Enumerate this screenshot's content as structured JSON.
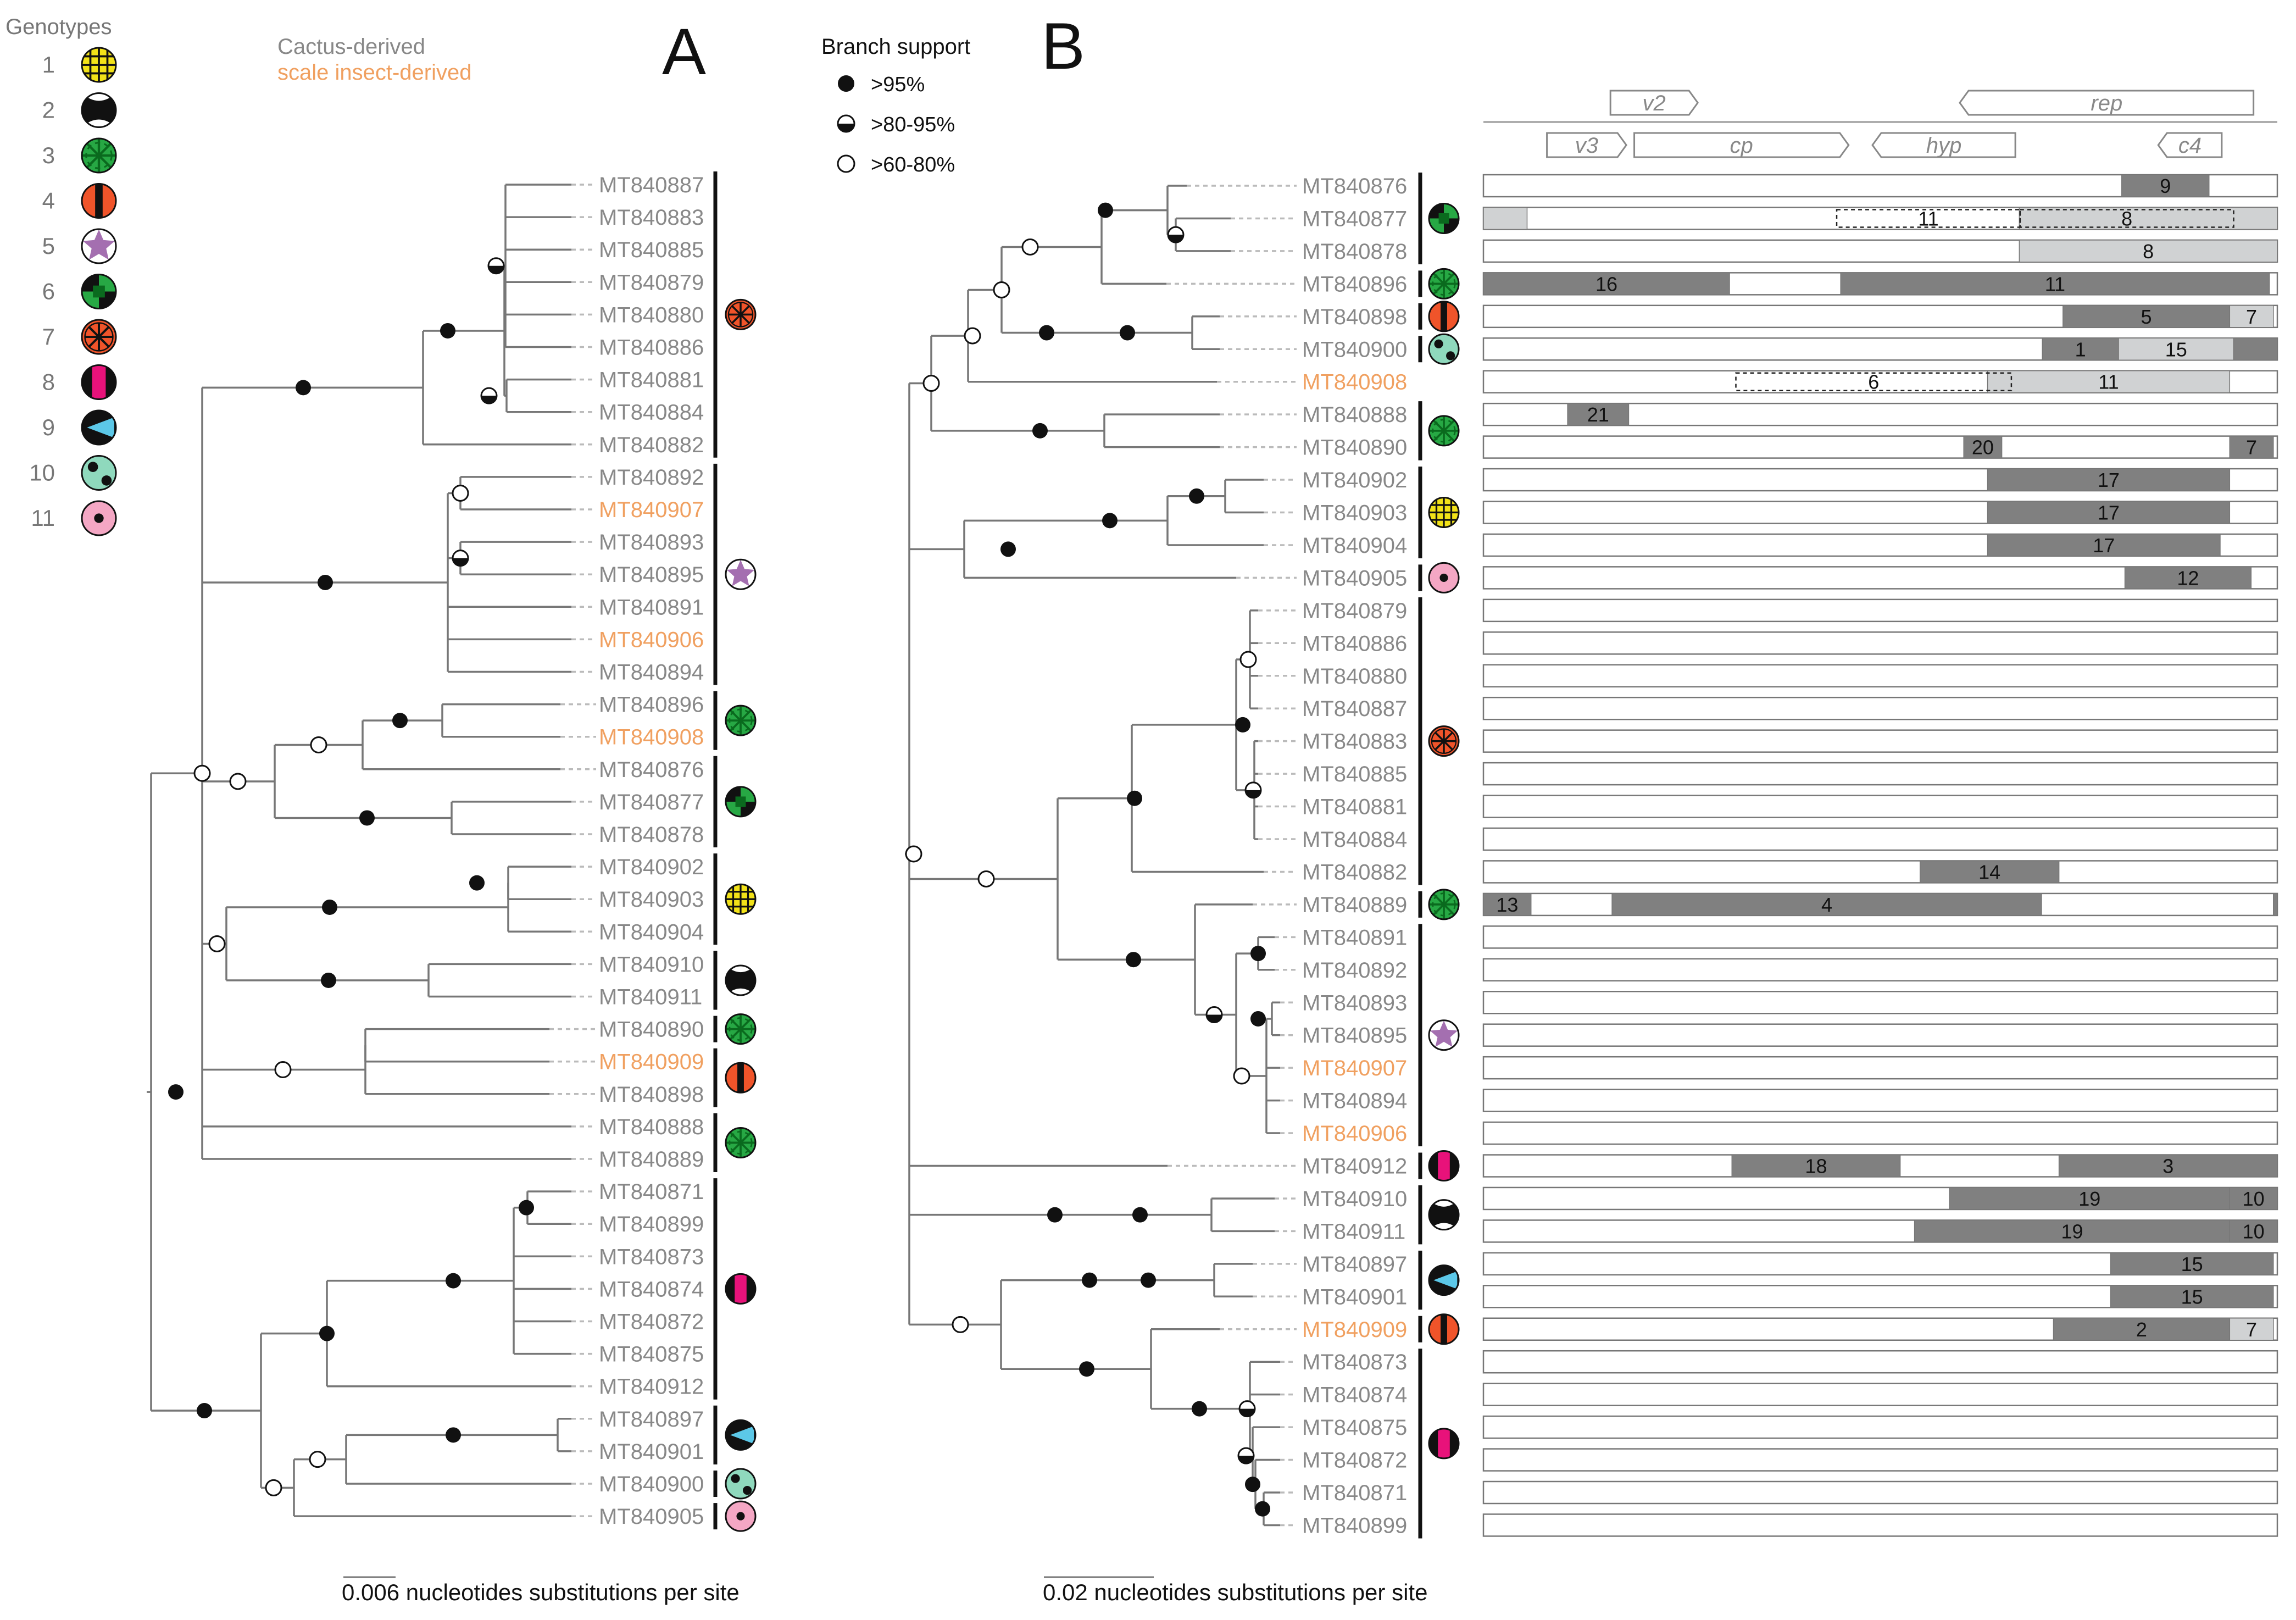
{
  "genotypes": {
    "title": "Genotypes",
    "items": [
      {
        "num": "1",
        "pattern": "grid",
        "fill": "#f2e218",
        "stroke": "#111111"
      },
      {
        "num": "2",
        "pattern": "hourglass",
        "fill": "#ffffff",
        "stroke": "#111111"
      },
      {
        "num": "3",
        "pattern": "burst",
        "fill": "#27a844",
        "stroke": "#0a6a1e"
      },
      {
        "num": "4",
        "pattern": "vbar",
        "fill": "#f0542a",
        "stroke": "#111111"
      },
      {
        "num": "5",
        "pattern": "star",
        "fill": "#a46fb0",
        "stroke": "#a46fb0"
      },
      {
        "num": "6",
        "pattern": "checker",
        "fill": "#27a844",
        "stroke": "#111111"
      },
      {
        "num": "7",
        "pattern": "asterisk",
        "fill": "#f0542a",
        "stroke": "#111111"
      },
      {
        "num": "8",
        "pattern": "pinkbar",
        "fill": "#e8127a",
        "stroke": "#111111"
      },
      {
        "num": "9",
        "pattern": "triangle",
        "fill": "#5cc8e8",
        "stroke": "#111111"
      },
      {
        "num": "10",
        "pattern": "dots",
        "fill": "#8fd9bd",
        "stroke": "#111111"
      },
      {
        "num": "11",
        "pattern": "dot",
        "fill": "#f4a7c4",
        "stroke": "#111111"
      }
    ]
  },
  "source_legend": {
    "cactus": "Cactus-derived",
    "scale": "scale insect-derived",
    "cactus_color": "#888888",
    "scale_color": "#f0a060"
  },
  "panel_a": {
    "label": "A",
    "scale_text": "0.006 nucleotides substitutions per site",
    "taxa": [
      {
        "name": "MT840887",
        "src": "cactus"
      },
      {
        "name": "MT840883",
        "src": "cactus"
      },
      {
        "name": "MT840885",
        "src": "cactus"
      },
      {
        "name": "MT840879",
        "src": "cactus"
      },
      {
        "name": "MT840880",
        "src": "cactus"
      },
      {
        "name": "MT840886",
        "src": "cactus"
      },
      {
        "name": "MT840881",
        "src": "cactus"
      },
      {
        "name": "MT840884",
        "src": "cactus"
      },
      {
        "name": "MT840882",
        "src": "cactus"
      },
      {
        "name": "MT840892",
        "src": "cactus"
      },
      {
        "name": "MT840907",
        "src": "scale"
      },
      {
        "name": "MT840893",
        "src": "cactus"
      },
      {
        "name": "MT840895",
        "src": "cactus"
      },
      {
        "name": "MT840891",
        "src": "cactus"
      },
      {
        "name": "MT840906",
        "src": "scale"
      },
      {
        "name": "MT840894",
        "src": "cactus"
      },
      {
        "name": "MT840896",
        "src": "cactus"
      },
      {
        "name": "MT840908",
        "src": "scale"
      },
      {
        "name": "MT840876",
        "src": "cactus"
      },
      {
        "name": "MT840877",
        "src": "cactus"
      },
      {
        "name": "MT840878",
        "src": "cactus"
      },
      {
        "name": "MT840902",
        "src": "cactus"
      },
      {
        "name": "MT840903",
        "src": "cactus"
      },
      {
        "name": "MT840904",
        "src": "cactus"
      },
      {
        "name": "MT840910",
        "src": "cactus"
      },
      {
        "name": "MT840911",
        "src": "cactus"
      },
      {
        "name": "MT840890",
        "src": "cactus"
      },
      {
        "name": "MT840909",
        "src": "scale"
      },
      {
        "name": "MT840898",
        "src": "cactus"
      },
      {
        "name": "MT840888",
        "src": "cactus"
      },
      {
        "name": "MT840889",
        "src": "cactus"
      },
      {
        "name": "MT840871",
        "src": "cactus"
      },
      {
        "name": "MT840899",
        "src": "cactus"
      },
      {
        "name": "MT840873",
        "src": "cactus"
      },
      {
        "name": "MT840874",
        "src": "cactus"
      },
      {
        "name": "MT840872",
        "src": "cactus"
      },
      {
        "name": "MT840875",
        "src": "cactus"
      },
      {
        "name": "MT840912",
        "src": "cactus"
      },
      {
        "name": "MT840897",
        "src": "cactus"
      },
      {
        "name": "MT840901",
        "src": "cactus"
      },
      {
        "name": "MT840900",
        "src": "cactus"
      },
      {
        "name": "MT840905",
        "src": "cactus"
      }
    ],
    "groups": [
      {
        "from": 0,
        "to": 8,
        "genotype": 7
      },
      {
        "from": 9,
        "to": 15,
        "genotype": 5
      },
      {
        "from": 16,
        "to": 17,
        "genotype": 3
      },
      {
        "from": 18,
        "to": 20,
        "genotype": 6
      },
      {
        "from": 21,
        "to": 23,
        "genotype": 1
      },
      {
        "from": 24,
        "to": 25,
        "genotype": 2
      },
      {
        "from": 26,
        "to": 26,
        "genotype": 3
      },
      {
        "from": 27,
        "to": 28,
        "genotype": 4
      },
      {
        "from": 29,
        "to": 30,
        "genotype": 3
      },
      {
        "from": 31,
        "to": 37,
        "genotype": 8
      },
      {
        "from": 38,
        "to": 39,
        "genotype": 9
      },
      {
        "from": 40,
        "to": 40,
        "genotype": 10
      },
      {
        "from": 41,
        "to": 41,
        "genotype": 11
      }
    ]
  },
  "branch_support": {
    "title": "Branch support",
    "items": [
      {
        "kind": "full",
        "label": ">95%"
      },
      {
        "kind": "half",
        "label": ">80-95%"
      },
      {
        "kind": "open",
        "label": ">60-80%"
      }
    ]
  },
  "panel_b": {
    "label": "B",
    "scale_text": "0.02 nucleotides substitutions per site",
    "genes": [
      {
        "name": "v2",
        "start": 0.16,
        "end": 0.27,
        "row": 0,
        "dir": "right"
      },
      {
        "name": "rep",
        "start": 0.6,
        "end": 0.97,
        "row": 0,
        "dir": "left"
      },
      {
        "name": "v3",
        "start": 0.08,
        "end": 0.18,
        "row": 1,
        "dir": "right"
      },
      {
        "name": "cp",
        "start": 0.19,
        "end": 0.46,
        "row": 1,
        "dir": "right"
      },
      {
        "name": "hyp",
        "start": 0.49,
        "end": 0.67,
        "row": 1,
        "dir": "left"
      },
      {
        "name": "c4",
        "start": 0.85,
        "end": 0.93,
        "row": 1,
        "dir": "left"
      }
    ],
    "taxa": [
      {
        "name": "MT840876",
        "src": "cactus",
        "segs": [
          {
            "s": 0.804,
            "e": 0.914,
            "c": "dark",
            "label": "9"
          }
        ]
      },
      {
        "name": "MT840877",
        "src": "cactus",
        "segs": [
          {
            "s": 0.0,
            "e": 0.055,
            "c": "light",
            "label": ""
          },
          {
            "s": 0.675,
            "e": 1.0,
            "c": "light",
            "label": ""
          },
          {
            "s": 0.445,
            "e": 0.676,
            "c": "dashed",
            "label": "11"
          },
          {
            "s": 0.676,
            "e": 0.945,
            "c": "dashed",
            "label": "8"
          }
        ]
      },
      {
        "name": "MT840878",
        "src": "cactus",
        "segs": [
          {
            "s": 0.675,
            "e": 1.0,
            "c": "light",
            "label": "8"
          }
        ]
      },
      {
        "name": "MT840896",
        "src": "cactus",
        "segs": [
          {
            "s": 0.0,
            "e": 0.31,
            "c": "dark",
            "label": "16"
          },
          {
            "s": 0.45,
            "e": 0.99,
            "c": "dark",
            "label": "11"
          }
        ]
      },
      {
        "name": "MT840898",
        "src": "cactus",
        "segs": [
          {
            "s": 0.73,
            "e": 0.94,
            "c": "dark",
            "label": "5"
          },
          {
            "s": 0.94,
            "e": 0.995,
            "c": "light",
            "label": "7"
          }
        ]
      },
      {
        "name": "MT840900",
        "src": "cactus",
        "segs": [
          {
            "s": 0.704,
            "e": 0.8,
            "c": "dark",
            "label": "1"
          },
          {
            "s": 0.8,
            "e": 0.945,
            "c": "light",
            "label": "15"
          },
          {
            "s": 0.945,
            "e": 1.0,
            "c": "dark",
            "label": ""
          }
        ]
      },
      {
        "name": "MT840908",
        "src": "scale",
        "segs": [
          {
            "s": 0.635,
            "e": 0.94,
            "c": "light",
            "label": "11"
          },
          {
            "s": 0.318,
            "e": 0.665,
            "c": "dashed",
            "label": "6"
          }
        ]
      },
      {
        "name": "MT840888",
        "src": "cactus",
        "segs": [
          {
            "s": 0.106,
            "e": 0.183,
            "c": "dark",
            "label": "21"
          }
        ]
      },
      {
        "name": "MT840890",
        "src": "cactus",
        "segs": [
          {
            "s": 0.605,
            "e": 0.653,
            "c": "dark",
            "label": "20"
          },
          {
            "s": 0.94,
            "e": 0.995,
            "c": "dark",
            "label": "7"
          }
        ]
      },
      {
        "name": "MT840902",
        "src": "cactus",
        "segs": [
          {
            "s": 0.635,
            "e": 0.94,
            "c": "dark",
            "label": "17"
          }
        ]
      },
      {
        "name": "MT840903",
        "src": "cactus",
        "segs": [
          {
            "s": 0.635,
            "e": 0.94,
            "c": "dark",
            "label": "17"
          }
        ]
      },
      {
        "name": "MT840904",
        "src": "cactus",
        "segs": [
          {
            "s": 0.635,
            "e": 0.928,
            "c": "dark",
            "label": "17"
          }
        ]
      },
      {
        "name": "MT840905",
        "src": "cactus",
        "segs": [
          {
            "s": 0.808,
            "e": 0.967,
            "c": "dark",
            "label": "12"
          }
        ]
      },
      {
        "name": "MT840879",
        "src": "cactus",
        "segs": []
      },
      {
        "name": "MT840886",
        "src": "cactus",
        "segs": []
      },
      {
        "name": "MT840880",
        "src": "cactus",
        "segs": []
      },
      {
        "name": "MT840887",
        "src": "cactus",
        "segs": []
      },
      {
        "name": "MT840883",
        "src": "cactus",
        "segs": []
      },
      {
        "name": "MT840885",
        "src": "cactus",
        "segs": []
      },
      {
        "name": "MT840881",
        "src": "cactus",
        "segs": []
      },
      {
        "name": "MT840884",
        "src": "cactus",
        "segs": []
      },
      {
        "name": "MT840882",
        "src": "cactus",
        "segs": [
          {
            "s": 0.55,
            "e": 0.725,
            "c": "dark",
            "label": "14"
          }
        ]
      },
      {
        "name": "MT840889",
        "src": "cactus",
        "segs": [
          {
            "s": 0.0,
            "e": 0.06,
            "c": "dark",
            "label": "13"
          },
          {
            "s": 0.162,
            "e": 0.703,
            "c": "dark",
            "label": "4"
          },
          {
            "s": 0.995,
            "e": 1.0,
            "c": "dark",
            "label": ""
          }
        ]
      },
      {
        "name": "MT840891",
        "src": "cactus",
        "segs": []
      },
      {
        "name": "MT840892",
        "src": "cactus",
        "segs": []
      },
      {
        "name": "MT840893",
        "src": "cactus",
        "segs": []
      },
      {
        "name": "MT840895",
        "src": "cactus",
        "segs": []
      },
      {
        "name": "MT840907",
        "src": "scale",
        "segs": []
      },
      {
        "name": "MT840894",
        "src": "cactus",
        "segs": []
      },
      {
        "name": "MT840906",
        "src": "scale",
        "segs": []
      },
      {
        "name": "MT840912",
        "src": "cactus",
        "segs": [
          {
            "s": 0.313,
            "e": 0.525,
            "c": "dark",
            "label": "18"
          },
          {
            "s": 0.725,
            "e": 1.0,
            "c": "dark",
            "label": "3"
          }
        ]
      },
      {
        "name": "MT840910",
        "src": "cactus",
        "segs": [
          {
            "s": 0.587,
            "e": 0.94,
            "c": "dark",
            "label": "19"
          },
          {
            "s": 0.94,
            "e": 1.0,
            "c": "dark",
            "label": "10"
          }
        ]
      },
      {
        "name": "MT840911",
        "src": "cactus",
        "segs": [
          {
            "s": 0.543,
            "e": 0.94,
            "c": "dark",
            "label": "19"
          },
          {
            "s": 0.94,
            "e": 1.0,
            "c": "dark",
            "label": "10"
          }
        ]
      },
      {
        "name": "MT840897",
        "src": "cactus",
        "segs": [
          {
            "s": 0.79,
            "e": 0.995,
            "c": "dark",
            "label": "15"
          }
        ]
      },
      {
        "name": "MT840901",
        "src": "cactus",
        "segs": [
          {
            "s": 0.79,
            "e": 0.995,
            "c": "dark",
            "label": "15"
          }
        ]
      },
      {
        "name": "MT840909",
        "src": "scale",
        "segs": [
          {
            "s": 0.718,
            "e": 0.94,
            "c": "dark",
            "label": "2"
          },
          {
            "s": 0.94,
            "e": 0.995,
            "c": "light",
            "label": "7"
          }
        ]
      },
      {
        "name": "MT840873",
        "src": "cactus",
        "segs": []
      },
      {
        "name": "MT840874",
        "src": "cactus",
        "segs": []
      },
      {
        "name": "MT840875",
        "src": "cactus",
        "segs": []
      },
      {
        "name": "MT840872",
        "src": "cactus",
        "segs": []
      },
      {
        "name": "MT840871",
        "src": "cactus",
        "segs": []
      },
      {
        "name": "MT840899",
        "src": "cactus",
        "segs": []
      }
    ],
    "groups": [
      {
        "from": 0,
        "to": 2,
        "genotype": 6
      },
      {
        "from": 3,
        "to": 3,
        "genotype": 3
      },
      {
        "from": 4,
        "to": 4,
        "genotype": 4
      },
      {
        "from": 5,
        "to": 5,
        "genotype": 10
      },
      {
        "from": 7,
        "to": 8,
        "genotype": 3
      },
      {
        "from": 9,
        "to": 11,
        "genotype": 1
      },
      {
        "from": 12,
        "to": 12,
        "genotype": 11
      },
      {
        "from": 13,
        "to": 21,
        "genotype": 7
      },
      {
        "from": 22,
        "to": 22,
        "genotype": 3
      },
      {
        "from": 23,
        "to": 29,
        "genotype": 5
      },
      {
        "from": 30,
        "to": 30,
        "genotype": 8
      },
      {
        "from": 31,
        "to": 32,
        "genotype": 2
      },
      {
        "from": 33,
        "to": 34,
        "genotype": 9
      },
      {
        "from": 35,
        "to": 35,
        "genotype": 4
      },
      {
        "from": 36,
        "to": 41,
        "genotype": 8
      }
    ]
  }
}
